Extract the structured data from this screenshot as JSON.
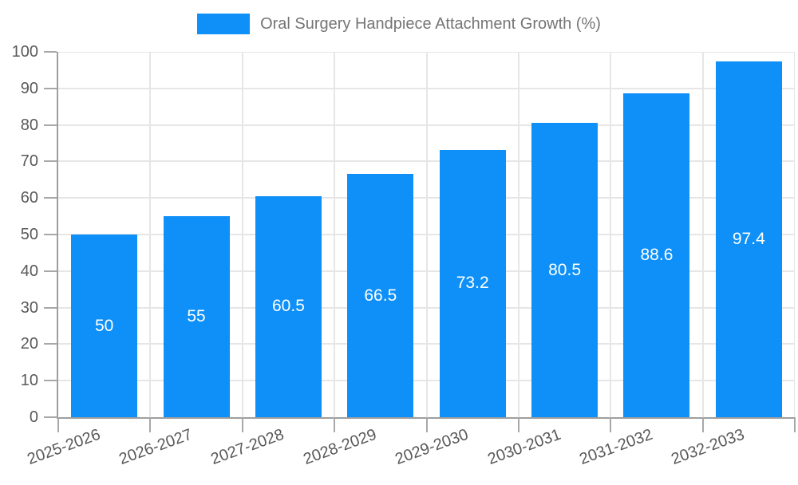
{
  "legend": {
    "label": "Oral Surgery Handpiece Attachment Growth (%)"
  },
  "chart_data": {
    "type": "bar",
    "title": "Oral Surgery Handpiece Attachment Growth (%)",
    "categories": [
      "2025-2026",
      "2026-2027",
      "2027-2028",
      "2028-2029",
      "2029-2030",
      "2030-2031",
      "2031-2032",
      "2032-2033"
    ],
    "values": [
      50,
      55,
      60.5,
      66.5,
      73.2,
      80.5,
      88.6,
      97.4
    ],
    "value_labels": [
      "50",
      "55",
      "60.5",
      "66.5",
      "73.2",
      "80.5",
      "88.6",
      "97.4"
    ],
    "xlabel": "",
    "ylabel": "",
    "ylim": [
      0,
      100
    ],
    "yticks": [
      0,
      10,
      20,
      30,
      40,
      50,
      60,
      70,
      80,
      90,
      100
    ],
    "grid": true,
    "legend_position": "top-center",
    "colors": {
      "bar": "#0E90F8",
      "value_label": "#FFFFFF",
      "axis": "#9E9E9E",
      "tick": "#A8A8A8",
      "grid": "#E6E6E6",
      "axis_label": "#595959",
      "legend_text": "#757575"
    }
  }
}
